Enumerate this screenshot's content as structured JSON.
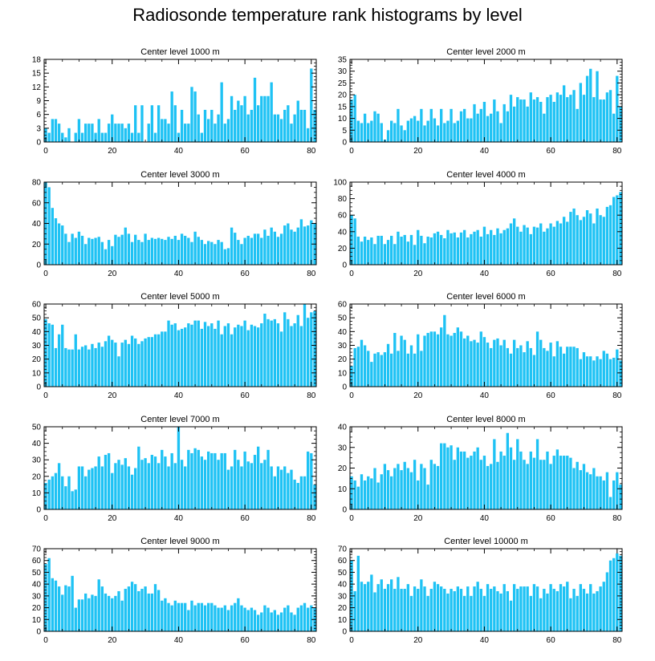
{
  "title": "Radiosonde temperature rank histograms by level",
  "colors": {
    "bar": "#1ec2f4",
    "axis": "#000000"
  },
  "chart_data": [
    {
      "type": "bar",
      "title": "Center level 1000 m",
      "ylim": [
        0,
        18
      ],
      "yticks": [
        0,
        3,
        6,
        9,
        12,
        15,
        18
      ],
      "xlim": [
        -0.5,
        81.5
      ],
      "xticks": [
        0,
        20,
        40,
        60,
        80
      ],
      "values": [
        3,
        2,
        5,
        5,
        4,
        2,
        1,
        3,
        0,
        2,
        5,
        2,
        4,
        4,
        4,
        2,
        5,
        2,
        2,
        4,
        6,
        4,
        4,
        4,
        3,
        4,
        2,
        8,
        2,
        8,
        0,
        4,
        8,
        2,
        8,
        5,
        5,
        4,
        11,
        8,
        2,
        7,
        4,
        4,
        12,
        11,
        6,
        2,
        7,
        5,
        7,
        4,
        6,
        13,
        4,
        5,
        10,
        7,
        9,
        8,
        10,
        6,
        7,
        14,
        8,
        10,
        10,
        10,
        13,
        6,
        6,
        5,
        7,
        8,
        4,
        6,
        9,
        7,
        7,
        3,
        16,
        7
      ]
    },
    {
      "type": "bar",
      "title": "Center level 2000 m",
      "ylim": [
        0,
        35
      ],
      "yticks": [
        0,
        5,
        10,
        15,
        20,
        25,
        30,
        35
      ],
      "xlim": [
        -0.5,
        81.5
      ],
      "xticks": [
        0,
        20,
        40,
        60,
        80
      ],
      "values": [
        18,
        20,
        9,
        8,
        12,
        8,
        9,
        13,
        12,
        8,
        1,
        5,
        9,
        8,
        14,
        7,
        5,
        9,
        10,
        11,
        9,
        14,
        7,
        9,
        14,
        10,
        7,
        14,
        8,
        9,
        14,
        8,
        9,
        13,
        14,
        10,
        10,
        16,
        12,
        14,
        17,
        11,
        12,
        18,
        13,
        8,
        16,
        13,
        20,
        15,
        19,
        18,
        18,
        15,
        21,
        18,
        19,
        17,
        12,
        19,
        20,
        17,
        21,
        20,
        24,
        19,
        20,
        22,
        14,
        25,
        20,
        28,
        31,
        19,
        30,
        18,
        18,
        21,
        22,
        12,
        28,
        15
      ]
    },
    {
      "type": "bar",
      "title": "Center level 3000 m",
      "ylim": [
        0,
        80
      ],
      "yticks": [
        0,
        20,
        40,
        60,
        80
      ],
      "xlim": [
        -0.5,
        81.5
      ],
      "xticks": [
        0,
        20,
        40,
        60,
        80
      ],
      "values": [
        80,
        75,
        55,
        45,
        40,
        38,
        30,
        22,
        30,
        26,
        32,
        28,
        20,
        26,
        25,
        26,
        27,
        22,
        15,
        24,
        18,
        29,
        27,
        29,
        36,
        30,
        22,
        29,
        24,
        22,
        30,
        24,
        26,
        25,
        26,
        25,
        24,
        27,
        25,
        28,
        24,
        30,
        28,
        26,
        22,
        32,
        27,
        24,
        20,
        23,
        22,
        20,
        24,
        22,
        15,
        16,
        36,
        31,
        24,
        20,
        26,
        28,
        26,
        30,
        30,
        26,
        34,
        28,
        36,
        32,
        27,
        30,
        38,
        40,
        34,
        32,
        36,
        44,
        37,
        38,
        43,
        40
      ]
    },
    {
      "type": "bar",
      "title": "Center level 4000 m",
      "ylim": [
        0,
        100
      ],
      "yticks": [
        0,
        20,
        40,
        60,
        80,
        100
      ],
      "xlim": [
        -0.5,
        81.5
      ],
      "xticks": [
        0,
        20,
        40,
        60,
        80
      ],
      "values": [
        60,
        56,
        34,
        28,
        34,
        30,
        33,
        25,
        35,
        35,
        25,
        30,
        35,
        25,
        40,
        34,
        36,
        28,
        36,
        24,
        42,
        35,
        26,
        34,
        33,
        38,
        40,
        36,
        32,
        42,
        38,
        39,
        33,
        39,
        42,
        33,
        37,
        40,
        42,
        34,
        46,
        37,
        42,
        36,
        44,
        38,
        42,
        44,
        50,
        56,
        46,
        40,
        48,
        45,
        37,
        46,
        45,
        50,
        40,
        44,
        50,
        46,
        53,
        50,
        58,
        52,
        64,
        68,
        60,
        54,
        58,
        66,
        62,
        50,
        68,
        60,
        58,
        70,
        72,
        82,
        84,
        88
      ]
    },
    {
      "type": "bar",
      "title": "Center level 5000 m",
      "ylim": [
        0,
        60
      ],
      "yticks": [
        0,
        10,
        20,
        30,
        40,
        50,
        60
      ],
      "xlim": [
        -0.5,
        81.5
      ],
      "xticks": [
        0,
        20,
        40,
        60,
        80
      ],
      "values": [
        49,
        46,
        45,
        28,
        38,
        45,
        28,
        27,
        27,
        38,
        27,
        29,
        30,
        27,
        31,
        28,
        32,
        29,
        33,
        37,
        34,
        32,
        22,
        32,
        34,
        31,
        37,
        35,
        31,
        33,
        35,
        36,
        36,
        38,
        38,
        40,
        40,
        48,
        45,
        46,
        41,
        42,
        43,
        46,
        45,
        48,
        48,
        42,
        47,
        44,
        46,
        42,
        48,
        38,
        44,
        46,
        38,
        43,
        45,
        44,
        48,
        41,
        45,
        44,
        43,
        46,
        53,
        49,
        48,
        49,
        46,
        40,
        54,
        49,
        44,
        46,
        52,
        44,
        60,
        50,
        54,
        55
      ]
    },
    {
      "type": "bar",
      "title": "Center level 6000 m",
      "ylim": [
        0,
        60
      ],
      "yticks": [
        0,
        10,
        20,
        30,
        40,
        50,
        60
      ],
      "xlim": [
        -0.5,
        81.5
      ],
      "xticks": [
        0,
        20,
        40,
        60,
        80
      ],
      "values": [
        15,
        28,
        29,
        34,
        30,
        26,
        18,
        24,
        25,
        23,
        25,
        31,
        24,
        39,
        26,
        37,
        34,
        24,
        30,
        24,
        38,
        26,
        37,
        39,
        40,
        40,
        38,
        43,
        52,
        38,
        37,
        39,
        43,
        40,
        35,
        37,
        33,
        34,
        32,
        40,
        36,
        32,
        28,
        34,
        35,
        30,
        34,
        28,
        24,
        34,
        28,
        30,
        25,
        33,
        28,
        23,
        40,
        34,
        28,
        26,
        32,
        22,
        33,
        29,
        24,
        29,
        29,
        29,
        28,
        20,
        25,
        22,
        22,
        19,
        22,
        20,
        26,
        24,
        20,
        21,
        27,
        19
      ]
    },
    {
      "type": "bar",
      "title": "Center level 7000 m",
      "ylim": [
        0,
        50
      ],
      "yticks": [
        0,
        10,
        20,
        30,
        40,
        50
      ],
      "xlim": [
        -0.5,
        81.5
      ],
      "xticks": [
        0,
        20,
        40,
        60,
        80
      ],
      "values": [
        16,
        18,
        20,
        22,
        28,
        20,
        14,
        20,
        11,
        12,
        26,
        26,
        20,
        24,
        25,
        26,
        32,
        26,
        33,
        34,
        22,
        28,
        30,
        27,
        31,
        26,
        21,
        25,
        38,
        30,
        31,
        28,
        33,
        32,
        28,
        36,
        32,
        26,
        34,
        28,
        50,
        30,
        26,
        36,
        34,
        37,
        36,
        32,
        30,
        35,
        34,
        34,
        30,
        34,
        34,
        24,
        26,
        36,
        30,
        26,
        35,
        29,
        28,
        33,
        38,
        28,
        30,
        36,
        26,
        20,
        26,
        24,
        26,
        22,
        24,
        18,
        16,
        20,
        20,
        35,
        34,
        15
      ]
    },
    {
      "type": "bar",
      "title": "Center level 8000 m",
      "ylim": [
        0,
        40
      ],
      "yticks": [
        0,
        10,
        20,
        30,
        40
      ],
      "xlim": [
        -0.5,
        81.5
      ],
      "xticks": [
        0,
        20,
        40,
        60,
        80
      ],
      "values": [
        16,
        14,
        11,
        17,
        14,
        16,
        15,
        20,
        13,
        17,
        22,
        19,
        16,
        20,
        22,
        19,
        23,
        20,
        18,
        24,
        14,
        22,
        20,
        12,
        24,
        22,
        21,
        32,
        32,
        30,
        31,
        24,
        30,
        28,
        28,
        25,
        26,
        28,
        30,
        24,
        26,
        21,
        22,
        34,
        23,
        28,
        26,
        37,
        30,
        24,
        34,
        28,
        24,
        22,
        28,
        25,
        34,
        24,
        24,
        28,
        22,
        26,
        29,
        26,
        26,
        26,
        25,
        20,
        23,
        19,
        22,
        18,
        17,
        20,
        16,
        16,
        14,
        18,
        6,
        14,
        18,
        12
      ]
    },
    {
      "type": "bar",
      "title": "Center level 9000 m",
      "ylim": [
        0,
        70
      ],
      "yticks": [
        0,
        10,
        20,
        30,
        40,
        50,
        60,
        70
      ],
      "xlim": [
        -0.5,
        81.5
      ],
      "xticks": [
        0,
        20,
        40,
        60,
        80
      ],
      "values": [
        57,
        62,
        45,
        43,
        38,
        31,
        39,
        38,
        47,
        20,
        27,
        27,
        32,
        28,
        31,
        30,
        44,
        38,
        32,
        30,
        28,
        30,
        34,
        26,
        36,
        38,
        42,
        40,
        34,
        36,
        38,
        32,
        32,
        40,
        35,
        26,
        28,
        24,
        22,
        26,
        24,
        24,
        24,
        18,
        26,
        22,
        24,
        24,
        22,
        24,
        24,
        22,
        20,
        20,
        22,
        18,
        22,
        24,
        28,
        22,
        20,
        18,
        20,
        18,
        14,
        16,
        22,
        20,
        16,
        18,
        14,
        16,
        20,
        22,
        16,
        14,
        20,
        22,
        24,
        20,
        22,
        20
      ]
    },
    {
      "type": "bar",
      "title": "Center level 10000 m",
      "ylim": [
        0,
        70
      ],
      "yticks": [
        0,
        10,
        20,
        30,
        40,
        50,
        60,
        70
      ],
      "xlim": [
        -0.5,
        81.5
      ],
      "xticks": [
        0,
        20,
        40,
        60,
        80
      ],
      "values": [
        60,
        34,
        64,
        42,
        40,
        42,
        48,
        33,
        40,
        44,
        36,
        40,
        44,
        36,
        46,
        36,
        36,
        40,
        30,
        38,
        36,
        44,
        38,
        30,
        36,
        42,
        40,
        38,
        36,
        32,
        36,
        34,
        38,
        36,
        30,
        38,
        30,
        38,
        42,
        36,
        30,
        40,
        36,
        38,
        34,
        32,
        40,
        34,
        26,
        40,
        36,
        38,
        38,
        38,
        30,
        40,
        38,
        28,
        36,
        32,
        40,
        36,
        34,
        40,
        38,
        42,
        28,
        36,
        30,
        40,
        36,
        32,
        40,
        32,
        34,
        38,
        42,
        50,
        60,
        62,
        66,
        64
      ]
    }
  ]
}
